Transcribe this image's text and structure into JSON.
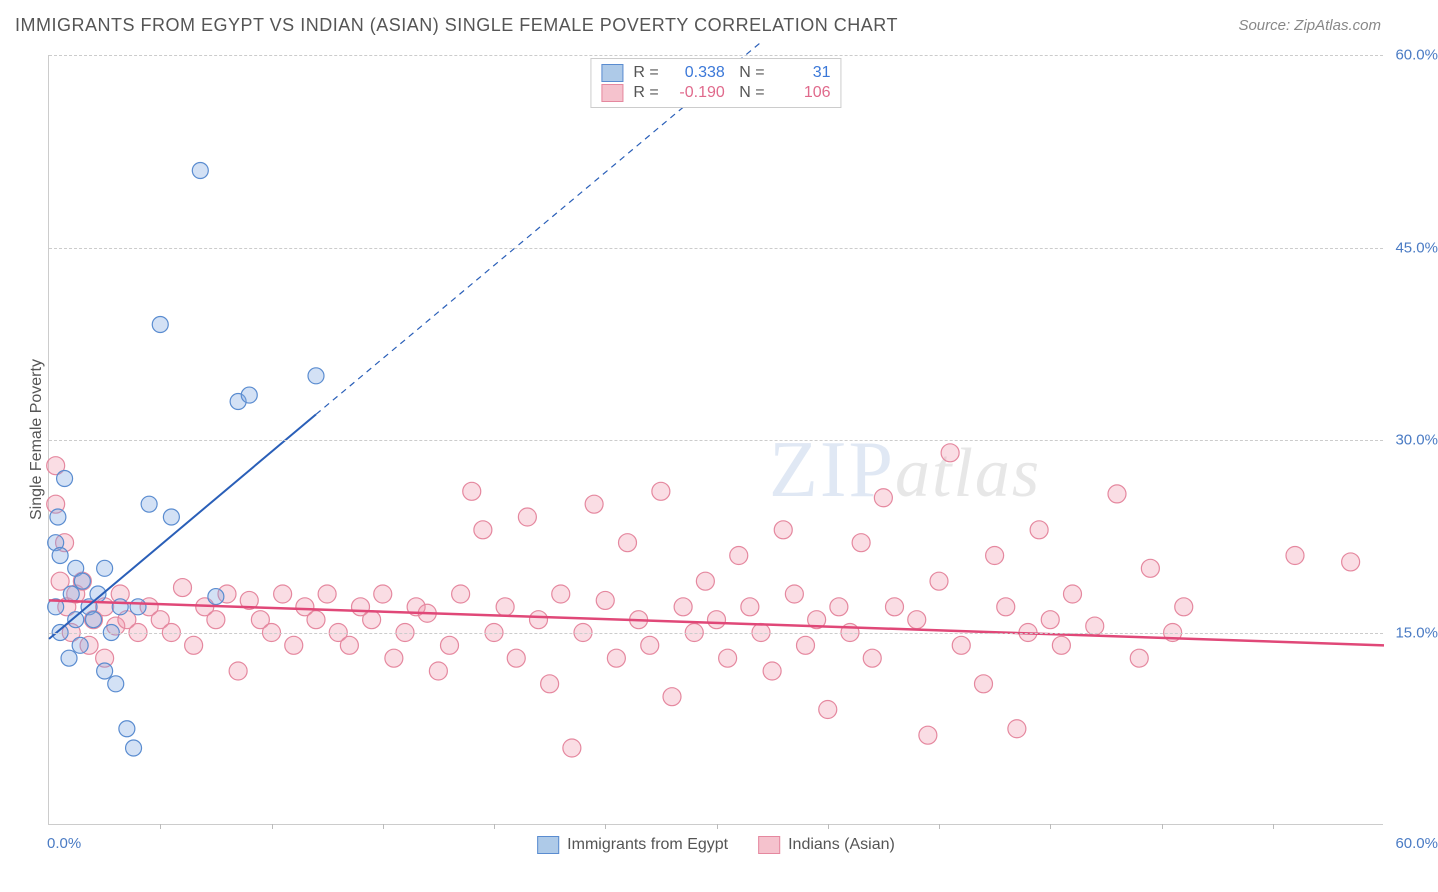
{
  "header": {
    "title": "IMMIGRANTS FROM EGYPT VS INDIAN (ASIAN) SINGLE FEMALE POVERTY CORRELATION CHART",
    "source": "Source: ZipAtlas.com"
  },
  "chart": {
    "type": "scatter",
    "xlim": [
      0,
      60
    ],
    "ylim": [
      0,
      60
    ],
    "ylabel": "Single Female Poverty",
    "yticks": [
      15,
      30,
      45,
      60
    ],
    "ytick_labels": [
      "15.0%",
      "30.0%",
      "45.0%",
      "60.0%"
    ],
    "xtick_labels": {
      "min": "0.0%",
      "max": "60.0%"
    },
    "xtick_minor_positions": [
      5,
      10,
      15,
      20,
      25,
      30,
      35,
      40,
      45,
      50,
      55
    ],
    "grid_color": "#cccccc",
    "background_color": "#ffffff",
    "series": [
      {
        "name": "Immigrants from Egypt",
        "R": "0.338",
        "N": "31",
        "marker_fill": "rgba(130,170,225,0.35)",
        "marker_stroke": "#5a8cd0",
        "marker_r": 8,
        "line_color": "#2a5fb8",
        "line_width": 2,
        "trend": {
          "x1": 0,
          "y1": 14.5,
          "x2": 12,
          "y2": 32
        },
        "trend_ext": {
          "x1": 12,
          "y1": 32,
          "x2": 32,
          "y2": 61
        },
        "points": [
          [
            0.3,
            17
          ],
          [
            0.3,
            22
          ],
          [
            0.5,
            15
          ],
          [
            0.4,
            24
          ],
          [
            0.7,
            27
          ],
          [
            0.5,
            21
          ],
          [
            0.9,
            13
          ],
          [
            1.0,
            18
          ],
          [
            1.2,
            16
          ],
          [
            1.2,
            20
          ],
          [
            1.4,
            14
          ],
          [
            1.5,
            19
          ],
          [
            1.8,
            17
          ],
          [
            2.0,
            16
          ],
          [
            2.2,
            18
          ],
          [
            2.5,
            12
          ],
          [
            2.5,
            20
          ],
          [
            2.8,
            15
          ],
          [
            3.0,
            11
          ],
          [
            3.2,
            17
          ],
          [
            3.8,
            6
          ],
          [
            4.0,
            17
          ],
          [
            4.5,
            25
          ],
          [
            5.0,
            39
          ],
          [
            5.5,
            24
          ],
          [
            6.8,
            51
          ],
          [
            7.5,
            17.8
          ],
          [
            8.5,
            33
          ],
          [
            9.0,
            33.5
          ],
          [
            12.0,
            35
          ],
          [
            3.5,
            7.5
          ]
        ]
      },
      {
        "name": "Indians (Asian)",
        "R": "-0.190",
        "N": "106",
        "marker_fill": "rgba(240,150,170,0.32)",
        "marker_stroke": "#e5889f",
        "marker_r": 9,
        "line_color": "#e04878",
        "line_width": 2.5,
        "trend": {
          "x1": 0,
          "y1": 17.5,
          "x2": 60,
          "y2": 14
        },
        "points": [
          [
            0.3,
            28
          ],
          [
            0.3,
            25
          ],
          [
            0.5,
            19
          ],
          [
            0.7,
            22
          ],
          [
            0.8,
            17
          ],
          [
            1.0,
            15
          ],
          [
            1.2,
            18
          ],
          [
            1.5,
            19
          ],
          [
            1.8,
            14
          ],
          [
            2.0,
            16
          ],
          [
            2.5,
            17
          ],
          [
            3.0,
            15.5
          ],
          [
            3.2,
            18
          ],
          [
            3.5,
            16
          ],
          [
            4.0,
            15
          ],
          [
            4.5,
            17
          ],
          [
            5.0,
            16
          ],
          [
            5.5,
            15
          ],
          [
            6.0,
            18.5
          ],
          [
            6.5,
            14
          ],
          [
            7.0,
            17
          ],
          [
            7.5,
            16
          ],
          [
            8.0,
            18
          ],
          [
            8.5,
            12
          ],
          [
            9.0,
            17.5
          ],
          [
            9.5,
            16
          ],
          [
            10,
            15
          ],
          [
            10.5,
            18
          ],
          [
            11,
            14
          ],
          [
            11.5,
            17
          ],
          [
            12,
            16
          ],
          [
            12.5,
            18
          ],
          [
            13,
            15
          ],
          [
            13.5,
            14
          ],
          [
            14,
            17
          ],
          [
            14.5,
            16
          ],
          [
            15,
            18
          ],
          [
            15.5,
            13
          ],
          [
            16,
            15
          ],
          [
            16.5,
            17
          ],
          [
            17,
            16.5
          ],
          [
            17.5,
            12
          ],
          [
            18,
            14
          ],
          [
            18.5,
            18
          ],
          [
            19,
            26
          ],
          [
            19.5,
            23
          ],
          [
            20,
            15
          ],
          [
            20.5,
            17
          ],
          [
            21,
            13
          ],
          [
            21.5,
            24
          ],
          [
            22,
            16
          ],
          [
            22.5,
            11
          ],
          [
            23,
            18
          ],
          [
            23.5,
            6
          ],
          [
            24,
            15
          ],
          [
            24.5,
            25
          ],
          [
            25,
            17.5
          ],
          [
            25.5,
            13
          ],
          [
            26,
            22
          ],
          [
            26.5,
            16
          ],
          [
            27,
            14
          ],
          [
            27.5,
            26
          ],
          [
            28,
            10
          ],
          [
            28.5,
            17
          ],
          [
            29,
            15
          ],
          [
            29.5,
            19
          ],
          [
            30,
            16
          ],
          [
            30.5,
            13
          ],
          [
            31,
            21
          ],
          [
            31.5,
            17
          ],
          [
            32,
            15
          ],
          [
            32.5,
            12
          ],
          [
            33,
            23
          ],
          [
            33.5,
            18
          ],
          [
            34,
            14
          ],
          [
            34.5,
            16
          ],
          [
            35,
            9
          ],
          [
            35.5,
            17
          ],
          [
            36,
            15
          ],
          [
            36.5,
            22
          ],
          [
            37,
            13
          ],
          [
            37.5,
            25.5
          ],
          [
            38,
            17
          ],
          [
            39,
            16
          ],
          [
            39.5,
            7
          ],
          [
            40,
            19
          ],
          [
            40.5,
            29
          ],
          [
            41,
            14
          ],
          [
            42,
            11
          ],
          [
            42.5,
            21
          ],
          [
            43,
            17
          ],
          [
            43.5,
            7.5
          ],
          [
            44,
            15
          ],
          [
            44.5,
            23
          ],
          [
            45,
            16
          ],
          [
            45.5,
            14
          ],
          [
            46,
            18
          ],
          [
            47,
            15.5
          ],
          [
            48,
            25.8
          ],
          [
            49,
            13
          ],
          [
            49.5,
            20
          ],
          [
            50.5,
            15
          ],
          [
            51,
            17
          ],
          [
            56,
            21
          ],
          [
            58.5,
            20.5
          ],
          [
            2.5,
            13
          ]
        ]
      }
    ],
    "legend_swatches": {
      "blue_fill": "#aecae8",
      "blue_stroke": "#5a8cd0",
      "pink_fill": "#f5c2cd",
      "pink_stroke": "#e5889f"
    },
    "correlation_colors": {
      "blue": "#3b78d8",
      "pink": "#e06a8c"
    },
    "watermark": {
      "zip": "ZIP",
      "atlas": "atlas"
    }
  }
}
